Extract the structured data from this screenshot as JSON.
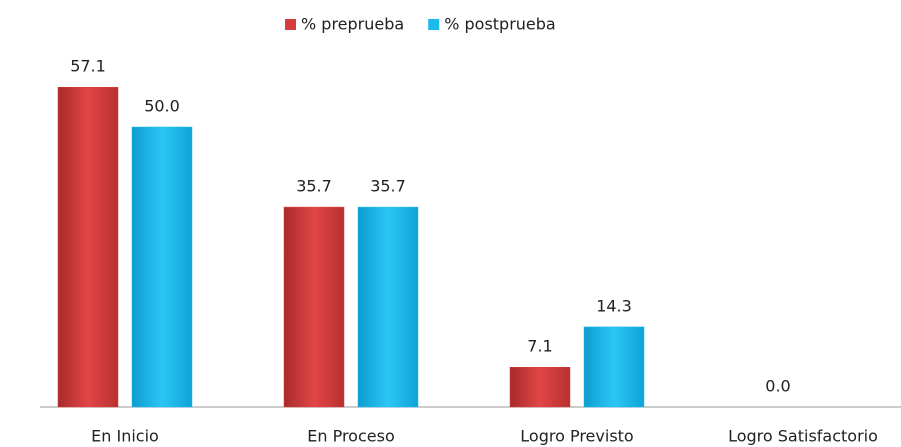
{
  "chart_data": {
    "type": "bar",
    "categories": [
      "En Inicio",
      "En Proceso",
      "Logro Previsto",
      "Logro Satisfactorio"
    ],
    "series": [
      {
        "name": "% preprueba",
        "color": "#d63c3c",
        "values": [
          57.1,
          35.7,
          7.1,
          0
        ],
        "value_labels": [
          "57.1",
          "35.7",
          "7.1",
          "0.0"
        ]
      },
      {
        "name": "% postprueba",
        "color": "#1cb9ec",
        "values": [
          50,
          35.7,
          14.3,
          0
        ],
        "value_labels": [
          "50.0",
          "35.7",
          "14.3",
          null
        ]
      }
    ],
    "ylim": [
      0,
      60
    ],
    "grid": false,
    "legend": "top"
  }
}
